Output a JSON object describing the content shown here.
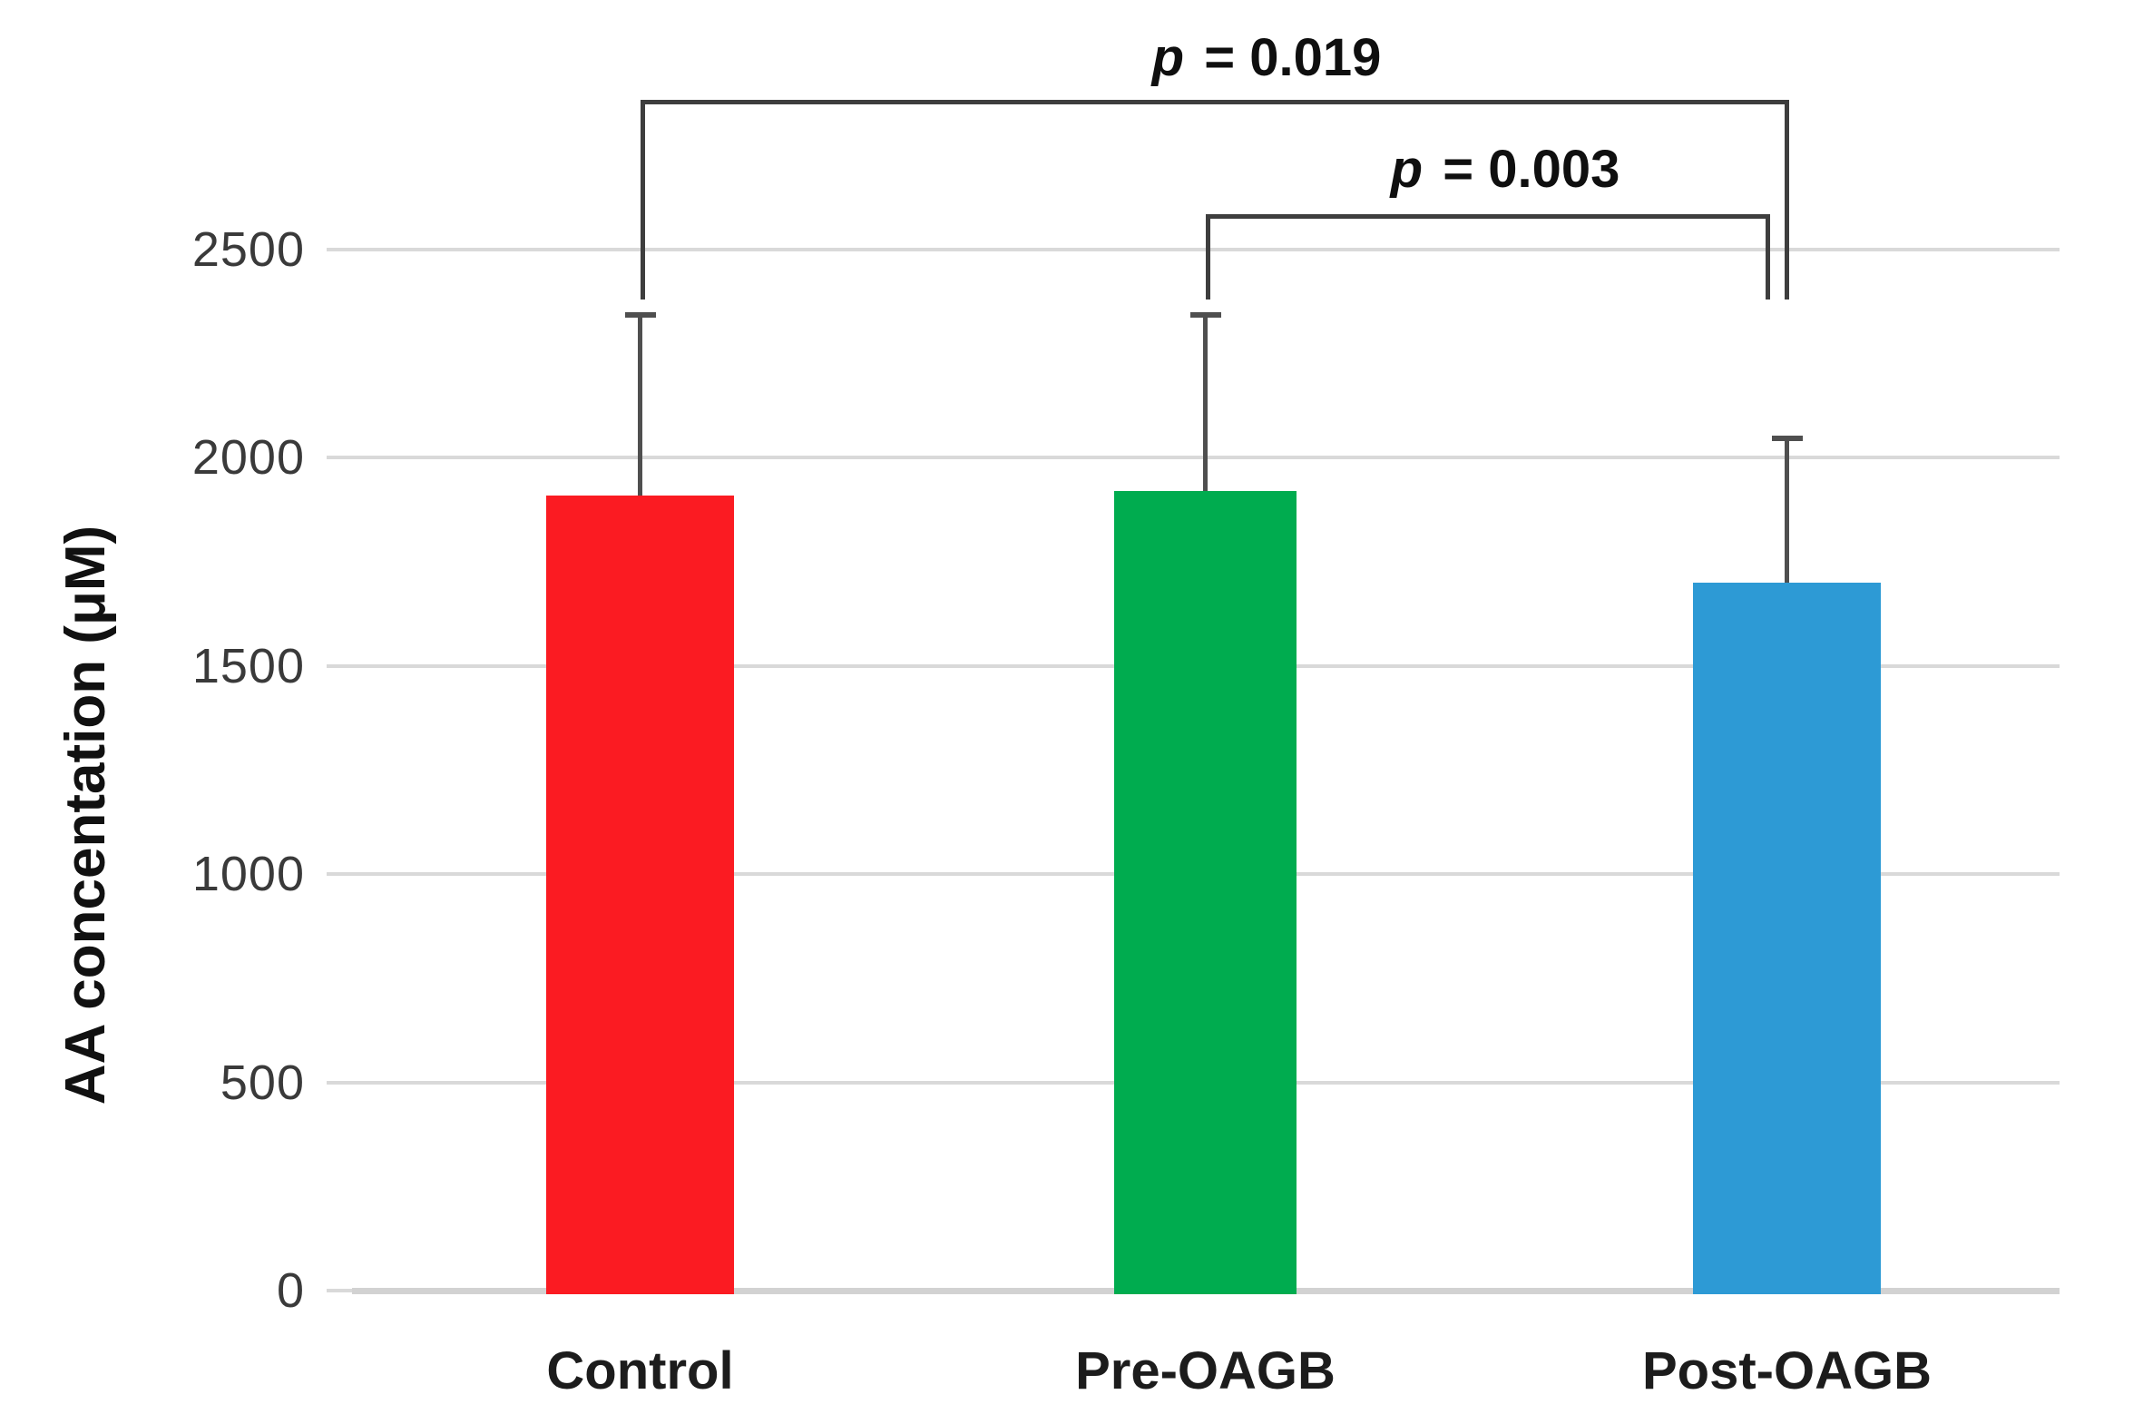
{
  "figure": {
    "background": "#ffffff",
    "description": "Bar chart of ascorbic acid concentration in three groups with SD error bars and significance brackets"
  },
  "chart_data": {
    "type": "bar",
    "title": "",
    "xlabel": "",
    "ylabel": "AA concentation (μM)",
    "categories": [
      "Control",
      "Pre-OAGB",
      "Post-OAGB"
    ],
    "values": [
      1910,
      1920,
      1700
    ],
    "upper_errors": [
      430,
      420,
      345
    ],
    "bar_colors": [
      "#fb1b22",
      "#00ac4f",
      "#2d9ad5"
    ],
    "ylim": [
      0,
      2500
    ],
    "yticks": [
      0,
      500,
      1000,
      1500,
      2000,
      2500
    ],
    "grid": "horizontal",
    "legend": "none",
    "significance": [
      {
        "pair": [
          "Control",
          "Post-OAGB"
        ],
        "label": "p = 0.019"
      },
      {
        "pair": [
          "Pre-OAGB",
          "Post-OAGB"
        ],
        "label": "p = 0.003"
      }
    ]
  },
  "colors": {
    "gridline": "#d9d9d9",
    "baseline": "#d2d2d2",
    "error_bar": "#4f4f4f",
    "bracket": "#3e3e3e",
    "tick_text": "#3a3a3a",
    "category_text": "#1c1c1c",
    "p_text": "#0f0f0f"
  }
}
